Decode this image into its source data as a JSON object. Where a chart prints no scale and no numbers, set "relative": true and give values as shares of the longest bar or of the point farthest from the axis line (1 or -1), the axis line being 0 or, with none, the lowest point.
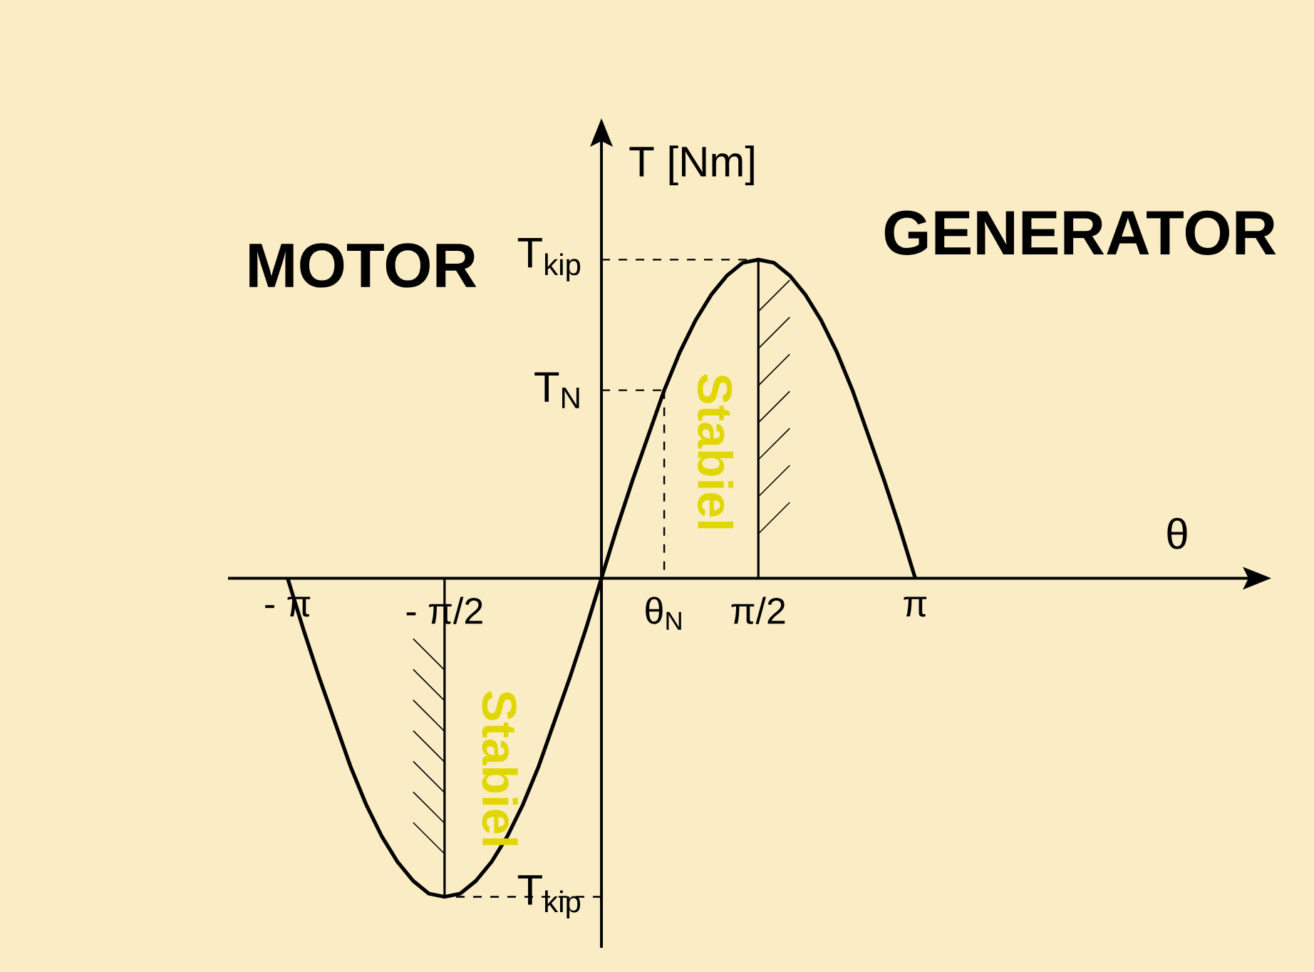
{
  "chart_data": {
    "type": "line",
    "relative": true,
    "ylabel": "T [Nm]",
    "categories": [
      "- π",
      null,
      null,
      null,
      null,
      null,
      null,
      null,
      null,
      null,
      "- π/2",
      null,
      null,
      null,
      null,
      null,
      null,
      null,
      null,
      null,
      null,
      null,
      null,
      null,
      "θ$_{N}$",
      null,
      null,
      null,
      null,
      null,
      "π/2",
      null,
      null,
      null,
      null,
      null,
      null,
      null,
      null,
      null,
      "π"
    ],
    "series": [
      {
        "color": "#000000",
        "line_style": "solid",
        "values": [
          0,
          -0.16,
          -0.31,
          -0.45,
          -0.59,
          -0.71,
          -0.81,
          -0.89,
          -0.95,
          -0.99,
          -1,
          -0.99,
          -0.95,
          -0.89,
          -0.81,
          -0.71,
          -0.59,
          -0.45,
          -0.31,
          -0.16,
          0,
          0.16,
          0.31,
          0.45,
          0.59,
          0.71,
          0.81,
          0.89,
          0.95,
          0.99,
          1,
          0.99,
          0.95,
          0.89,
          0.81,
          0.71,
          0.59,
          0.45,
          0.31,
          0.16,
          0
        ]
      }
    ],
    "ref_lines": [
      {
        "axis": "y",
        "value": 1,
        "label": "T$_{kip}$",
        "line_style": "dashed"
      },
      {
        "axis": "y",
        "value": 0.59,
        "label": "T$_{N}$",
        "line_style": "dashed"
      },
      {
        "axis": "y",
        "value": -1,
        "label": "T$_{kip}$",
        "line_style": "dashed"
      }
    ],
    "annotations": [
      "MOTOR",
      "GENERATOR",
      "Stabiel",
      "Stabiel",
      "θ"
    ]
  }
}
